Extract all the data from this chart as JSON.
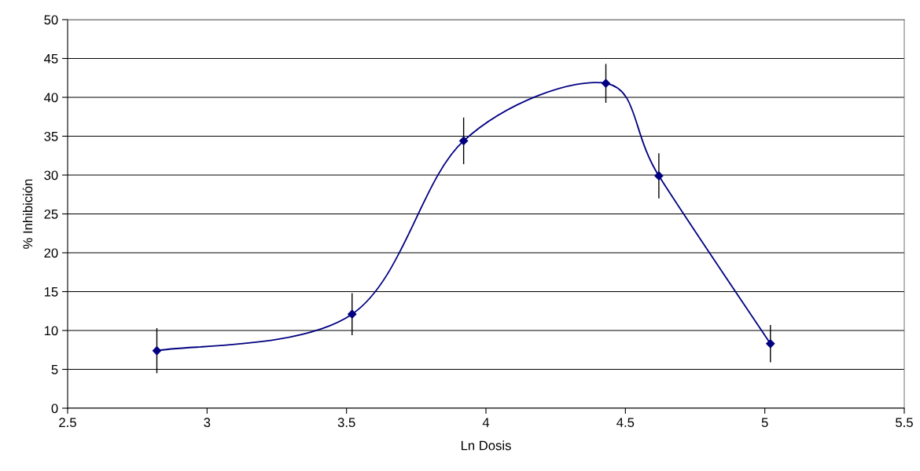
{
  "chart_data": {
    "type": "line",
    "xlabel": "Ln Dosis",
    "ylabel": "% Inhibición",
    "x": [
      2.82,
      3.52,
      3.92,
      4.43,
      4.62,
      5.02
    ],
    "series": [
      {
        "color": "#000080",
        "values": [
          7.4,
          12.1,
          34.4,
          41.8,
          29.9,
          8.3
        ],
        "errors": [
          2.9,
          2.7,
          3.0,
          2.5,
          2.9,
          2.4
        ]
      }
    ],
    "xlim": [
      2.5,
      5.5
    ],
    "xticks": [
      2.5,
      3,
      3.5,
      4,
      4.5,
      5,
      5.5
    ],
    "ylim": [
      0,
      50
    ],
    "yticks": [
      0,
      5,
      10,
      15,
      20,
      25,
      30,
      35,
      40,
      45,
      50
    ],
    "grid": "y",
    "marker": "diamond",
    "line_style": "solid"
  }
}
